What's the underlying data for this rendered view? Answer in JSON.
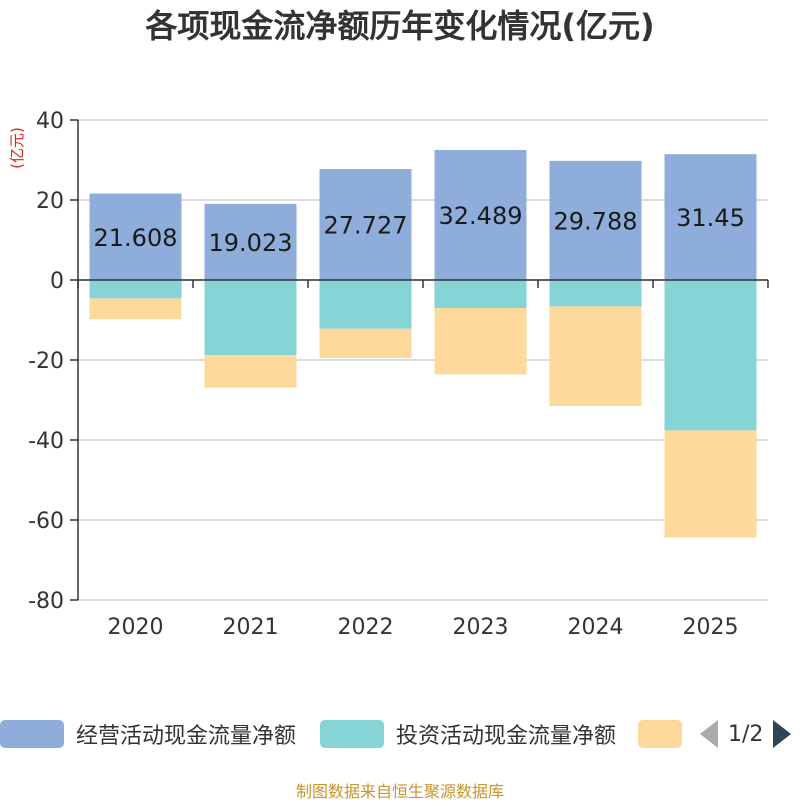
{
  "chart_data": {
    "type": "bar",
    "stacked": true,
    "title": "各项现金流净额历年变化情况(亿元)",
    "ylabel": "(亿元)",
    "ylim": [
      -80,
      40
    ],
    "yticks": [
      40,
      20,
      0,
      -20,
      -40,
      -60,
      -80
    ],
    "categories": [
      "2020",
      "2021",
      "2022",
      "2023",
      "2024",
      "2025"
    ],
    "series": [
      {
        "name": "经营活动现金流量净额",
        "color": "#8eaddb",
        "values": [
          21.608,
          19.023,
          27.727,
          32.489,
          29.788,
          31.45
        ],
        "labels": [
          "21.608",
          "19.023",
          "27.727",
          "32.489",
          "29.788",
          "31.45"
        ]
      },
      {
        "name": "投资活动现金流量净额",
        "color": "#86d4d6",
        "values": [
          -4.6,
          -18.8,
          -12.2,
          -7.0,
          -6.6,
          -37.6
        ]
      },
      {
        "name": "",
        "color": "#fdd99b",
        "values": [
          -5.2,
          -8.1,
          -7.3,
          -16.6,
          -24.9,
          -26.8
        ]
      }
    ]
  },
  "legend": {
    "items": [
      {
        "label": "经营活动现金流量净额",
        "color": "#8eaddb"
      },
      {
        "label": "投资活动现金流量净额",
        "color": "#86d4d6"
      },
      {
        "label": "",
        "color": "#fdd99b"
      }
    ],
    "page_text": "1/2"
  },
  "source": "制图数据来自恒生聚源数据库"
}
